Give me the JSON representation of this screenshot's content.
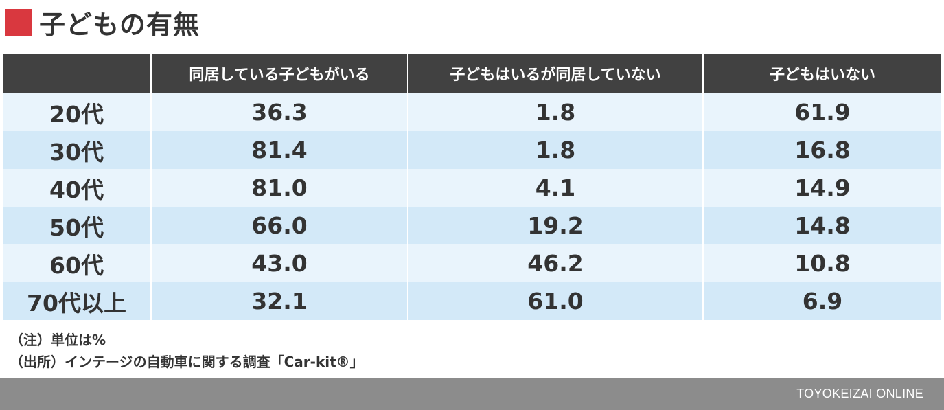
{
  "title": "子どもの有無",
  "colors": {
    "title_marker": "#d9383f",
    "header_bg": "#414141",
    "row_light": "#e9f4fc",
    "row_dark": "#d3e9f8",
    "footer_bg": "#8c8c8c"
  },
  "chart_data": {
    "type": "table",
    "title": "子どもの有無",
    "columns": [
      "",
      "同居している子どもがいる",
      "子どもはいるが同居していない",
      "子どもはいない"
    ],
    "rows": [
      {
        "label": "20代",
        "values": [
          "36.3",
          "1.8",
          "61.9"
        ]
      },
      {
        "label": "30代",
        "values": [
          "81.4",
          "1.8",
          "16.8"
        ]
      },
      {
        "label": "40代",
        "values": [
          "81.0",
          "4.1",
          "14.9"
        ]
      },
      {
        "label": "50代",
        "values": [
          "66.0",
          "19.2",
          "14.8"
        ]
      },
      {
        "label": "60代",
        "values": [
          "43.0",
          "46.2",
          "10.8"
        ]
      },
      {
        "label": "70代以上",
        "values": [
          "32.1",
          "61.0",
          "6.9"
        ]
      }
    ]
  },
  "notes": {
    "unit": "（注）単位は%",
    "source": "（出所）インテージの自動車に関する調査「Car-kit®」"
  },
  "footer": {
    "brand": "TOYOKEIZAI ONLINE"
  }
}
